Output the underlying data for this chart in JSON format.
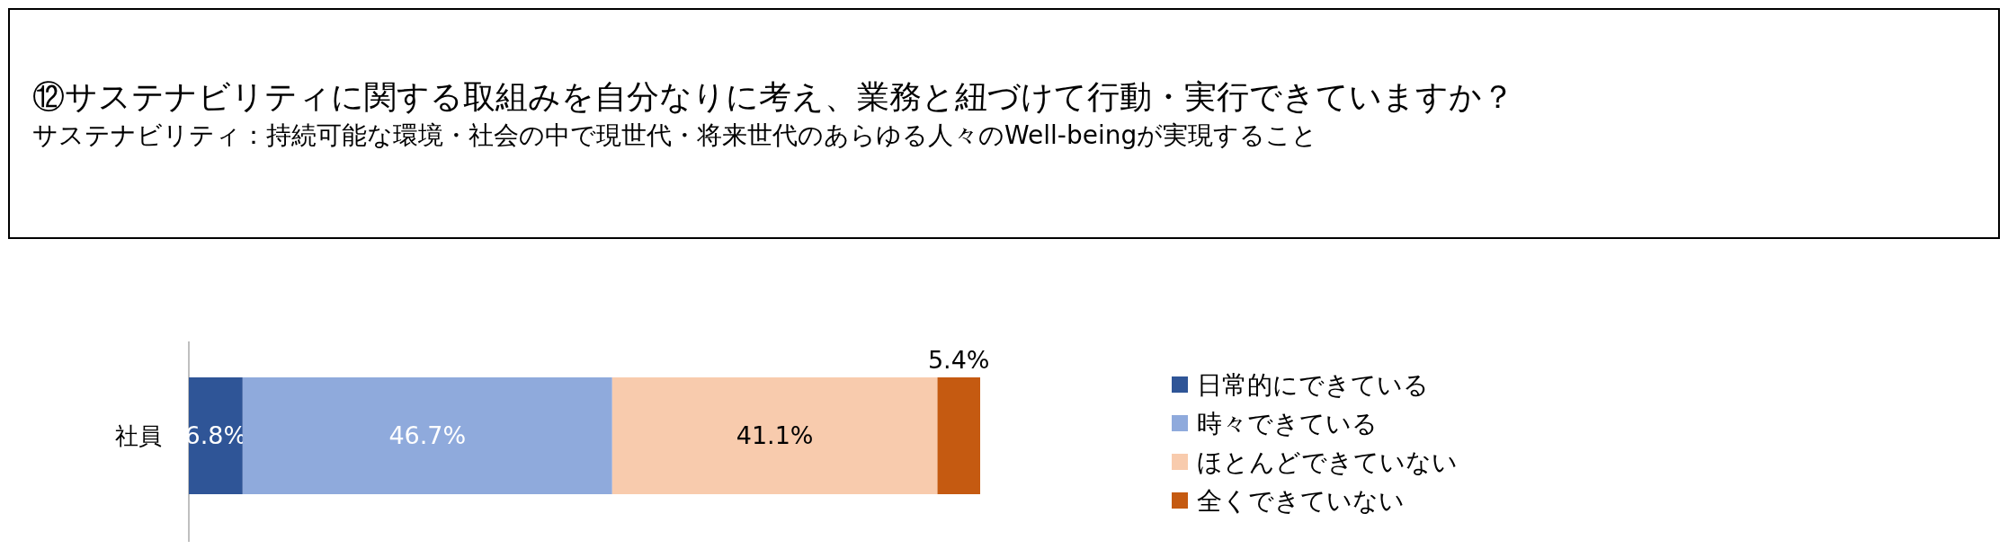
{
  "chart_data": {
    "type": "bar",
    "orientation": "horizontal",
    "stacked": true,
    "title": "⑫サステナビリティに関する取組みを自分なりに考え、業務と紐づけて行動・実行できていますか？",
    "subtitle": "サステナビリティ：持続可能な環境・社会の中で現世代・将来世代のあらゆる人々のWell-beingが実現すること",
    "categories": [
      "社員"
    ],
    "series": [
      {
        "name": "日常的にできている",
        "color": "#2f5597",
        "values": [
          6.8
        ],
        "value_labels": [
          "6.8%"
        ]
      },
      {
        "name": "時々できている",
        "color": "#8faadc",
        "values": [
          46.7
        ],
        "value_labels": [
          "46.7%"
        ]
      },
      {
        "name": "ほとんどできていない",
        "color": "#f8cbad",
        "values": [
          41.1
        ],
        "value_labels": [
          "41.1%"
        ]
      },
      {
        "name": "全くできていない",
        "color": "#c55a11",
        "values": [
          5.4
        ],
        "value_labels": [
          "5.4%"
        ]
      }
    ],
    "legend": "right"
  }
}
